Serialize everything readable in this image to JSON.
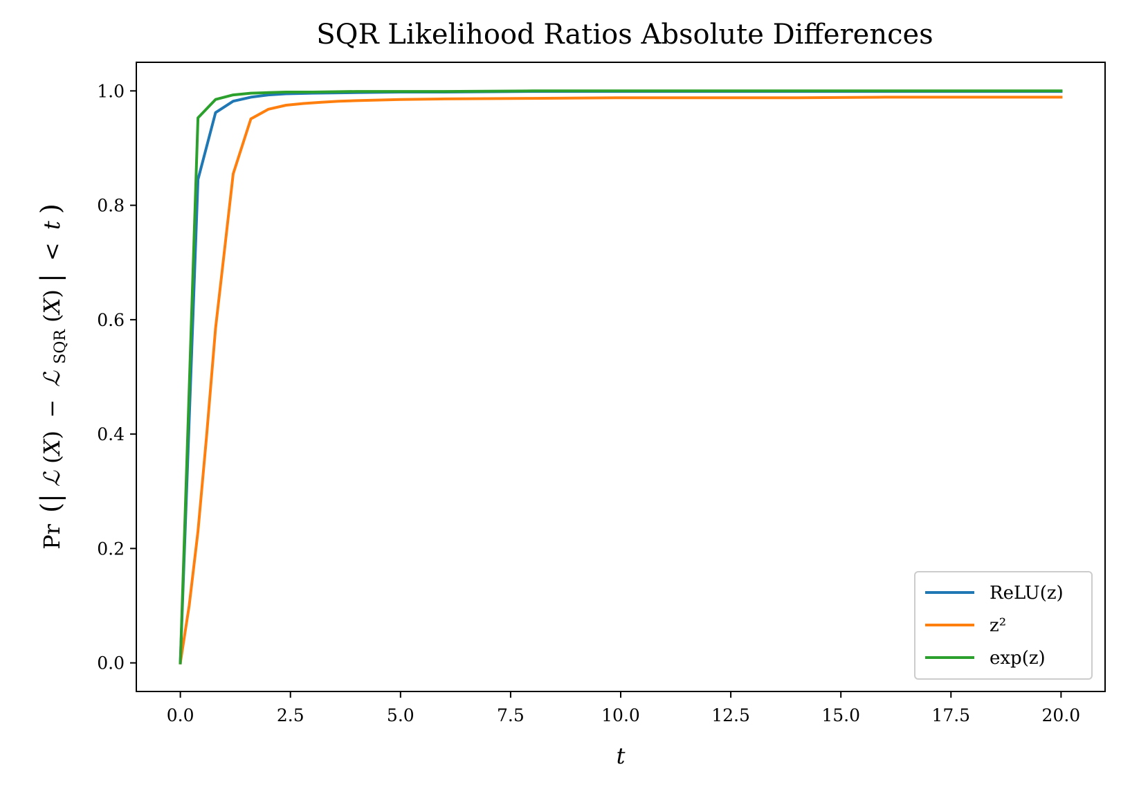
{
  "chart_data": {
    "type": "line",
    "title": "SQR Likelihood Ratios Absolute Differences",
    "xlabel": "t",
    "ylabel": "Pr(|ℒ(X) − ℒ_SQR(X)| < t)",
    "xlim": [
      -1.0,
      21.0
    ],
    "ylim": [
      -0.05,
      1.05
    ],
    "xticks": [
      0.0,
      2.5,
      5.0,
      7.5,
      10.0,
      12.5,
      15.0,
      17.5,
      20.0
    ],
    "xtick_labels": [
      "0.0",
      "2.5",
      "5.0",
      "7.5",
      "10.0",
      "12.5",
      "15.0",
      "17.5",
      "20.0"
    ],
    "yticks": [
      0.0,
      0.2,
      0.4,
      0.6,
      0.8,
      1.0
    ],
    "ytick_labels": [
      "0.0",
      "0.2",
      "0.4",
      "0.6",
      "0.8",
      "1.0"
    ],
    "grid": false,
    "legend_position": "lower-right",
    "series": [
      {
        "name": "ReLU(z)",
        "color": "#1f77b4",
        "x": [
          0,
          0.4,
          0.8,
          1.2,
          1.6,
          2.0,
          2.4,
          3.0,
          4.0,
          5.0,
          6.0,
          8.0,
          10.0,
          12.0,
          14.0,
          16.0,
          18.0,
          20.0
        ],
        "y": [
          0.0,
          0.845,
          0.962,
          0.982,
          0.989,
          0.993,
          0.995,
          0.996,
          0.997,
          0.998,
          0.998,
          0.999,
          0.999,
          0.999,
          0.999,
          0.999,
          0.999,
          0.999
        ]
      },
      {
        "name": "z²",
        "color": "#ff7f0e",
        "x": [
          0,
          0.2,
          0.4,
          0.6,
          0.8,
          1.0,
          1.2,
          1.6,
          2.0,
          2.4,
          2.8,
          3.2,
          3.6,
          4.0,
          5.0,
          6.0,
          8.0,
          10.0,
          12.0,
          14.0,
          16.0,
          18.0,
          20.0
        ],
        "y": [
          0.0,
          0.1,
          0.23,
          0.4,
          0.585,
          0.72,
          0.855,
          0.951,
          0.968,
          0.975,
          0.978,
          0.98,
          0.982,
          0.983,
          0.985,
          0.986,
          0.987,
          0.988,
          0.988,
          0.988,
          0.989,
          0.989,
          0.989
        ]
      },
      {
        "name": "exp(z)",
        "color": "#2ca02c",
        "x": [
          0,
          0.4,
          0.8,
          1.2,
          1.6,
          2.0,
          2.4,
          3.0,
          4.0,
          5.0,
          6.0,
          8.0,
          10.0,
          12.0,
          14.0,
          16.0,
          18.0,
          20.0
        ],
        "y": [
          0.0,
          0.953,
          0.985,
          0.993,
          0.996,
          0.997,
          0.998,
          0.998,
          0.999,
          0.999,
          0.999,
          1.0,
          1.0,
          1.0,
          1.0,
          1.0,
          1.0,
          1.0
        ]
      }
    ]
  }
}
